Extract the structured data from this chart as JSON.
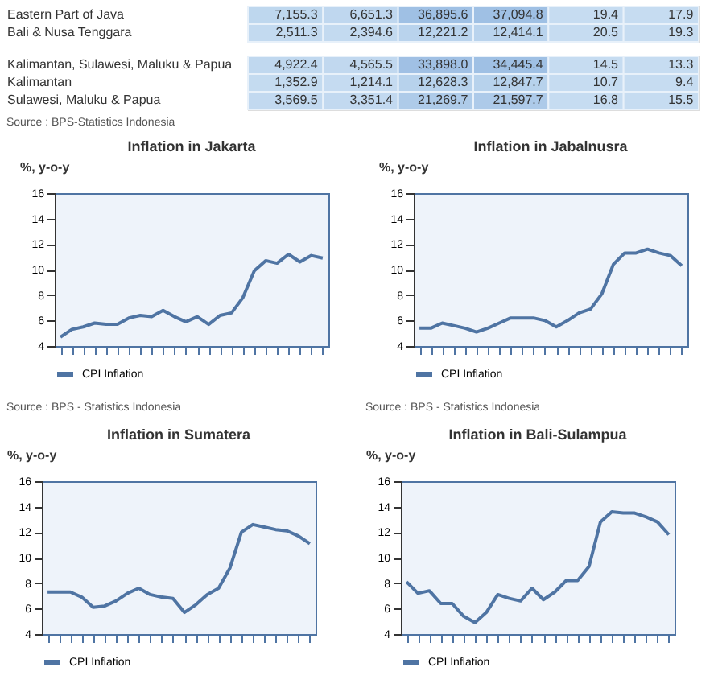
{
  "chart_data": [
    {
      "type": "heatmap",
      "categories": [
        null,
        null,
        null,
        null,
        null,
        null
      ],
      "y_categories": [
        "Eastern Part of Java",
        "Bali & Nusa Tenggara"
      ],
      "cells": [
        [
          7155.3,
          6651.3,
          36895.6,
          37094.8,
          19.4,
          17.9
        ],
        [
          2511.3,
          2394.6,
          12221.2,
          12414.1,
          20.5,
          19.3
        ]
      ],
      "cell_labels": [
        [
          "7,155.3",
          "6,651.3",
          "36,895.6",
          "37,094.8",
          "19.4",
          "17.9"
        ],
        [
          "2,511.3",
          "2,394.6",
          "12,221.2",
          "12,414.1",
          "20.5",
          "19.3"
        ]
      ]
    },
    {
      "type": "heatmap",
      "categories": [
        null,
        null,
        null,
        null,
        null,
        null
      ],
      "y_categories": [
        "Kalimantan, Sulawesi, Maluku & Papua",
        "Kalimantan",
        "Sulawesi, Maluku & Papua"
      ],
      "cells": [
        [
          4922.4,
          4565.5,
          33898.0,
          34445.4,
          14.5,
          13.3
        ],
        [
          1352.9,
          1214.1,
          12628.3,
          12847.7,
          10.7,
          9.4
        ],
        [
          3569.5,
          3351.4,
          21269.7,
          21597.7,
          16.8,
          15.5
        ]
      ],
      "cell_labels": [
        [
          "4,922.4",
          "4,565.5",
          "33,898.0",
          "34,445.4",
          "14.5",
          "13.3"
        ],
        [
          "1,352.9",
          "1,214.1",
          "12,628.3",
          "12,847.7",
          "10.7",
          "9.4"
        ],
        [
          "3,569.5",
          "3,351.4",
          "21,269.7",
          "21,597.7",
          "16.8",
          "15.5"
        ]
      ],
      "annotations": [
        "Source : BPS-Statistics Indonesia"
      ]
    },
    {
      "type": "line",
      "title": "Inflation in Jakarta",
      "ylabel": "%, y-o-y",
      "categories": [
        null,
        null,
        null,
        null,
        null,
        null,
        null,
        null,
        null,
        null,
        null,
        null,
        null,
        null,
        null,
        null,
        null,
        null,
        null,
        null,
        null,
        null,
        null,
        null
      ],
      "series": [
        {
          "name": "CPI Inflation",
          "color": "#4f74a3",
          "values": [
            4.7,
            5.3,
            5.5,
            5.8,
            5.7,
            5.7,
            6.2,
            6.4,
            6.3,
            6.8,
            6.3,
            5.9,
            6.3,
            5.7,
            6.4,
            6.6,
            7.8,
            9.9,
            10.7,
            10.5,
            11.2,
            10.6,
            11.1,
            10.9
          ]
        }
      ],
      "ylim": [
        4,
        16
      ],
      "yticks": [
        4,
        6,
        8,
        10,
        12,
        14,
        16
      ],
      "grid": false,
      "legend": "bottom",
      "marker": "none",
      "line_style": "solid",
      "annotations": [
        "Source : BPS - Statistics Indonesia"
      ]
    },
    {
      "type": "line",
      "title": "Inflation in Jabalnusra",
      "ylabel": "%, y-o-y",
      "categories": [
        null,
        null,
        null,
        null,
        null,
        null,
        null,
        null,
        null,
        null,
        null,
        null,
        null,
        null,
        null,
        null,
        null,
        null,
        null,
        null,
        null,
        null,
        null,
        null
      ],
      "series": [
        {
          "name": "CPI Inflation",
          "color": "#4f74a3",
          "values": [
            5.4,
            5.4,
            5.8,
            5.6,
            5.4,
            5.1,
            5.4,
            5.8,
            6.2,
            6.2,
            6.2,
            6.0,
            5.5,
            6.0,
            6.6,
            6.9,
            8.1,
            10.4,
            11.3,
            11.3,
            11.6,
            11.3,
            11.1,
            10.3
          ]
        }
      ],
      "ylim": [
        4,
        16
      ],
      "yticks": [
        4,
        6,
        8,
        10,
        12,
        14,
        16
      ],
      "grid": false,
      "legend": "bottom",
      "marker": "none",
      "line_style": "solid",
      "annotations": [
        "Source : BPS - Statistics Indonesia"
      ]
    },
    {
      "type": "line",
      "title": "Inflation in Sumatera",
      "ylabel": "%, y-o-y",
      "categories": [
        null,
        null,
        null,
        null,
        null,
        null,
        null,
        null,
        null,
        null,
        null,
        null,
        null,
        null,
        null,
        null,
        null,
        null,
        null,
        null,
        null,
        null,
        null,
        null
      ],
      "series": [
        {
          "name": "CPI Inflation",
          "color": "#4f74a3",
          "values": [
            7.3,
            7.3,
            7.3,
            6.9,
            6.1,
            6.2,
            6.6,
            7.2,
            7.6,
            7.1,
            6.9,
            6.8,
            5.7,
            6.3,
            7.1,
            7.6,
            9.2,
            12.0,
            12.6,
            12.4,
            12.2,
            12.1,
            11.7,
            11.1
          ]
        }
      ],
      "ylim": [
        4,
        16
      ],
      "yticks": [
        4,
        6,
        8,
        10,
        12,
        14,
        16
      ],
      "grid": false,
      "legend": "bottom",
      "marker": "none",
      "line_style": "solid"
    },
    {
      "type": "line",
      "title": "Inflation in Bali-Sulampua",
      "ylabel": "%, y-o-y",
      "categories": [
        null,
        null,
        null,
        null,
        null,
        null,
        null,
        null,
        null,
        null,
        null,
        null,
        null,
        null,
        null,
        null,
        null,
        null,
        null,
        null,
        null,
        null,
        null,
        null
      ],
      "series": [
        {
          "name": "CPI Inflation",
          "color": "#4f74a3",
          "values": [
            8.1,
            7.2,
            7.4,
            6.4,
            6.4,
            5.4,
            4.9,
            5.7,
            7.1,
            6.8,
            6.6,
            7.6,
            6.7,
            7.3,
            8.2,
            8.2,
            9.3,
            12.8,
            13.6,
            13.5,
            13.5,
            13.2,
            12.8,
            11.8
          ]
        }
      ],
      "ylim": [
        4,
        16
      ],
      "yticks": [
        4,
        6,
        8,
        10,
        12,
        14,
        16
      ],
      "grid": false,
      "legend": "bottom",
      "marker": "none",
      "line_style": "solid"
    }
  ]
}
